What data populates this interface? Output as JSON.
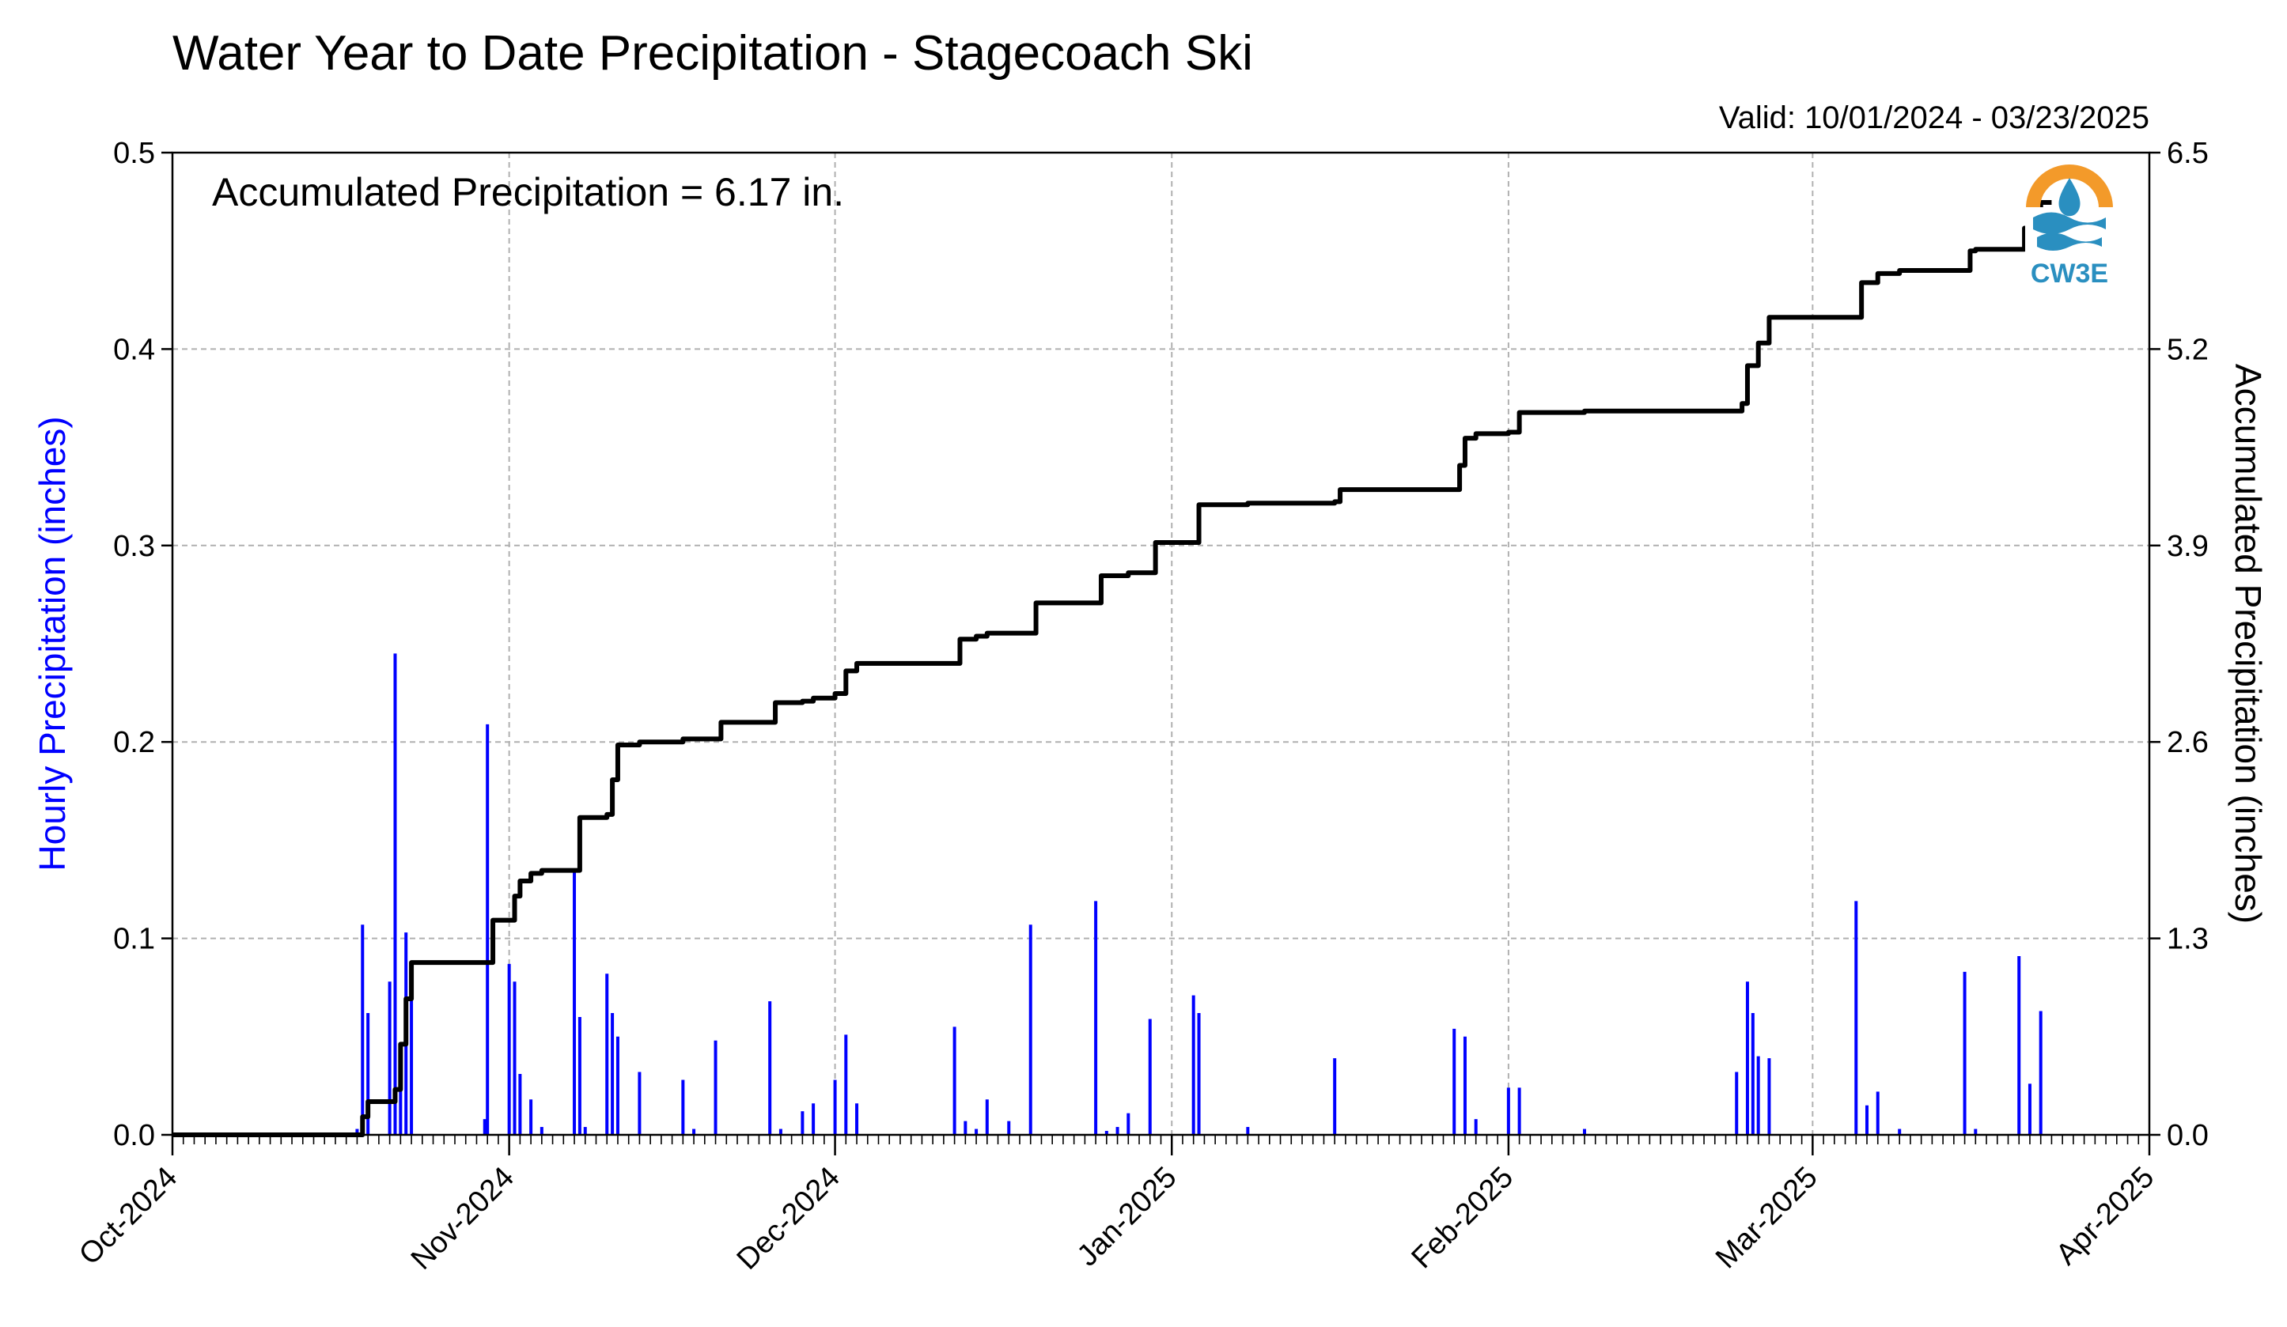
{
  "chart_data": {
    "type": "bar+line",
    "title": "Water Year to Date Precipitation - Stagecoach Ski",
    "valid_label": "Valid: 10/01/2024 - 03/23/2025",
    "annotation": "Accumulated Precipitation = 6.17 in.",
    "logo_text": "CW3E",
    "xlabel": "",
    "ylabel_left": "Hourly Precipitation (inches)",
    "ylabel_right": "Accumulated Precipitation (inches)",
    "x_range": [
      "2024-10-01",
      "2025-04-01"
    ],
    "x_ticks": [
      {
        "date": "2024-10-01",
        "label": "Oct-2024"
      },
      {
        "date": "2024-11-01",
        "label": "Nov-2024"
      },
      {
        "date": "2024-12-01",
        "label": "Dec-2024"
      },
      {
        "date": "2025-01-01",
        "label": "Jan-2025"
      },
      {
        "date": "2025-02-01",
        "label": "Feb-2025"
      },
      {
        "date": "2025-03-01",
        "label": "Mar-2025"
      },
      {
        "date": "2025-04-01",
        "label": "Apr-2025"
      }
    ],
    "y_left": {
      "min": 0,
      "max": 0.5,
      "ticks": [
        "0.0",
        "0.1",
        "0.2",
        "0.3",
        "0.4",
        "0.5"
      ]
    },
    "y_right": {
      "min": 0,
      "max": 6.5,
      "ticks": [
        "0.0",
        "1.3",
        "2.6",
        "3.9",
        "5.2",
        "6.5"
      ]
    },
    "grid": true,
    "colors": {
      "hourly": "#0000ff",
      "accumulated": "#000000",
      "grid": "#b0b0b0",
      "logo_orange": "#f39a2a",
      "logo_blue": "#2a8fc0"
    },
    "series": [
      {
        "name": "Hourly Precipitation",
        "axis": "left",
        "points": [
          [
            "2024-10-18",
            0.003
          ],
          [
            "2024-10-18T12",
            0.107
          ],
          [
            "2024-10-19",
            0.062
          ],
          [
            "2024-10-21",
            0.078
          ],
          [
            "2024-10-21T12",
            0.245
          ],
          [
            "2024-10-22",
            0.045
          ],
          [
            "2024-10-22T12",
            0.103
          ],
          [
            "2024-10-23",
            0.085
          ],
          [
            "2024-10-29T18",
            0.008
          ],
          [
            "2024-10-30",
            0.209
          ],
          [
            "2024-11-01",
            0.087
          ],
          [
            "2024-11-01T12",
            0.078
          ],
          [
            "2024-11-02",
            0.031
          ],
          [
            "2024-11-03",
            0.018
          ],
          [
            "2024-11-04",
            0.004
          ],
          [
            "2024-11-07",
            0.135
          ],
          [
            "2024-11-07T12",
            0.06
          ],
          [
            "2024-11-08",
            0.004
          ],
          [
            "2024-11-10",
            0.082
          ],
          [
            "2024-11-10T12",
            0.062
          ],
          [
            "2024-11-11",
            0.05
          ],
          [
            "2024-11-13",
            0.032
          ],
          [
            "2024-11-17",
            0.028
          ],
          [
            "2024-11-18",
            0.003
          ],
          [
            "2024-11-20",
            0.048
          ],
          [
            "2024-11-25",
            0.068
          ],
          [
            "2024-11-26",
            0.003
          ],
          [
            "2024-11-28",
            0.012
          ],
          [
            "2024-11-29",
            0.016
          ],
          [
            "2024-12-01",
            0.028
          ],
          [
            "2024-12-02",
            0.051
          ],
          [
            "2024-12-03",
            0.016
          ],
          [
            "2024-12-12",
            0.055
          ],
          [
            "2024-12-13",
            0.007
          ],
          [
            "2024-12-14",
            0.003
          ],
          [
            "2024-12-15",
            0.018
          ],
          [
            "2024-12-17",
            0.007
          ],
          [
            "2024-12-19",
            0.107
          ],
          [
            "2024-12-25",
            0.119
          ],
          [
            "2024-12-26",
            0.002
          ],
          [
            "2024-12-27",
            0.004
          ],
          [
            "2024-12-28",
            0.011
          ],
          [
            "2024-12-30",
            0.059
          ],
          [
            "2025-01-03",
            0.071
          ],
          [
            "2025-01-03T12",
            0.062
          ],
          [
            "2025-01-08",
            0.004
          ],
          [
            "2025-01-16",
            0.039
          ],
          [
            "2025-01-27",
            0.054
          ],
          [
            "2025-01-28",
            0.05
          ],
          [
            "2025-01-29",
            0.008
          ],
          [
            "2025-02-01",
            0.024
          ],
          [
            "2025-02-02",
            0.024
          ],
          [
            "2025-02-08",
            0.003
          ],
          [
            "2025-02-22",
            0.032
          ],
          [
            "2025-02-23",
            0.078
          ],
          [
            "2025-02-23T12",
            0.062
          ],
          [
            "2025-02-24",
            0.04
          ],
          [
            "2025-02-25",
            0.039
          ],
          [
            "2025-03-05",
            0.119
          ],
          [
            "2025-03-06",
            0.015
          ],
          [
            "2025-03-07",
            0.022
          ],
          [
            "2025-03-09",
            0.003
          ],
          [
            "2025-03-15",
            0.083
          ],
          [
            "2025-03-16",
            0.003
          ],
          [
            "2025-03-20",
            0.091
          ],
          [
            "2025-03-21",
            0.026
          ],
          [
            "2025-03-22",
            0.063
          ]
        ]
      },
      {
        "name": "Accumulated Precipitation",
        "axis": "right",
        "points": [
          [
            "2024-10-01",
            0.0
          ],
          [
            "2024-10-18",
            0.0
          ],
          [
            "2024-10-18T12",
            0.12
          ],
          [
            "2024-10-19",
            0.22
          ],
          [
            "2024-10-21",
            0.22
          ],
          [
            "2024-10-21T12",
            0.3
          ],
          [
            "2024-10-22",
            0.6
          ],
          [
            "2024-10-22T12",
            0.9
          ],
          [
            "2024-10-23",
            1.14
          ],
          [
            "2024-10-30",
            1.14
          ],
          [
            "2024-10-30T12",
            1.42
          ],
          [
            "2024-11-01",
            1.42
          ],
          [
            "2024-11-01T12",
            1.58
          ],
          [
            "2024-11-02",
            1.68
          ],
          [
            "2024-11-03",
            1.73
          ],
          [
            "2024-11-04",
            1.75
          ],
          [
            "2024-11-07",
            1.75
          ],
          [
            "2024-11-07T12",
            2.1
          ],
          [
            "2024-11-10",
            2.12
          ],
          [
            "2024-11-10T12",
            2.35
          ],
          [
            "2024-11-11",
            2.58
          ],
          [
            "2024-11-13",
            2.6
          ],
          [
            "2024-11-17",
            2.62
          ],
          [
            "2024-11-20",
            2.62
          ],
          [
            "2024-11-20T12",
            2.73
          ],
          [
            "2024-11-25",
            2.73
          ],
          [
            "2024-11-25T12",
            2.86
          ],
          [
            "2024-11-28",
            2.87
          ],
          [
            "2024-11-29",
            2.89
          ],
          [
            "2024-12-01",
            2.92
          ],
          [
            "2024-12-02",
            3.07
          ],
          [
            "2024-12-03",
            3.12
          ],
          [
            "2024-12-12",
            3.12
          ],
          [
            "2024-12-12T12",
            3.28
          ],
          [
            "2024-12-14",
            3.3
          ],
          [
            "2024-12-15",
            3.32
          ],
          [
            "2024-12-19",
            3.32
          ],
          [
            "2024-12-19T12",
            3.52
          ],
          [
            "2024-12-25",
            3.52
          ],
          [
            "2024-12-25T12",
            3.7
          ],
          [
            "2024-12-28",
            3.72
          ],
          [
            "2024-12-30",
            3.72
          ],
          [
            "2024-12-30T12",
            3.92
          ],
          [
            "2025-01-03",
            3.92
          ],
          [
            "2025-01-03T12",
            4.17
          ],
          [
            "2025-01-08",
            4.18
          ],
          [
            "2025-01-16",
            4.19
          ],
          [
            "2025-01-16T12",
            4.27
          ],
          [
            "2025-01-27",
            4.27
          ],
          [
            "2025-01-27T12",
            4.43
          ],
          [
            "2025-01-28",
            4.61
          ],
          [
            "2025-01-29",
            4.64
          ],
          [
            "2025-02-01",
            4.65
          ],
          [
            "2025-02-02",
            4.78
          ],
          [
            "2025-02-08",
            4.79
          ],
          [
            "2025-02-22",
            4.79
          ],
          [
            "2025-02-22T12",
            4.84
          ],
          [
            "2025-02-23",
            5.09
          ],
          [
            "2025-02-24",
            5.24
          ],
          [
            "2025-02-25",
            5.41
          ],
          [
            "2025-03-05",
            5.41
          ],
          [
            "2025-03-05T12",
            5.64
          ],
          [
            "2025-03-07",
            5.7
          ],
          [
            "2025-03-09",
            5.72
          ],
          [
            "2025-03-15",
            5.72
          ],
          [
            "2025-03-15T12",
            5.85
          ],
          [
            "2025-03-16",
            5.86
          ],
          [
            "2025-03-20",
            5.86
          ],
          [
            "2025-03-20T12",
            6.0
          ],
          [
            "2025-03-21",
            6.04
          ],
          [
            "2025-03-22",
            6.17
          ],
          [
            "2025-03-23",
            6.17
          ]
        ]
      }
    ]
  }
}
